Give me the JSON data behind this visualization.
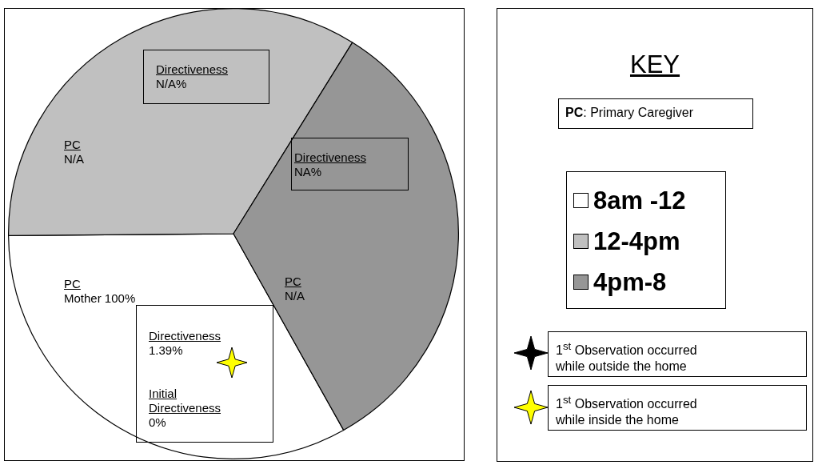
{
  "chart_data": {
    "type": "pie",
    "categories": [
      "8am -12",
      "12-4pm",
      "4pm-8"
    ],
    "values": [
      33,
      34,
      33
    ],
    "colors": [
      "#ffffff",
      "#c0c0c0",
      "#969696"
    ],
    "legend": "right",
    "legend_title": "KEY",
    "annotations": [
      "PC\nN/A",
      "Directiveness\nN/A%",
      "Directiveness\nNA%",
      "PC\nN/A",
      "PC\nMother 100%",
      "Directiveness\n1.39%",
      "Initial\nDirectiveness\n0%",
      "PC: Primary Caregiver",
      "1$^{st}$ Observation occurred\nwhile outside the home",
      "1$^{st}$ Observation occurred\nwhile inside the home"
    ]
  }
}
